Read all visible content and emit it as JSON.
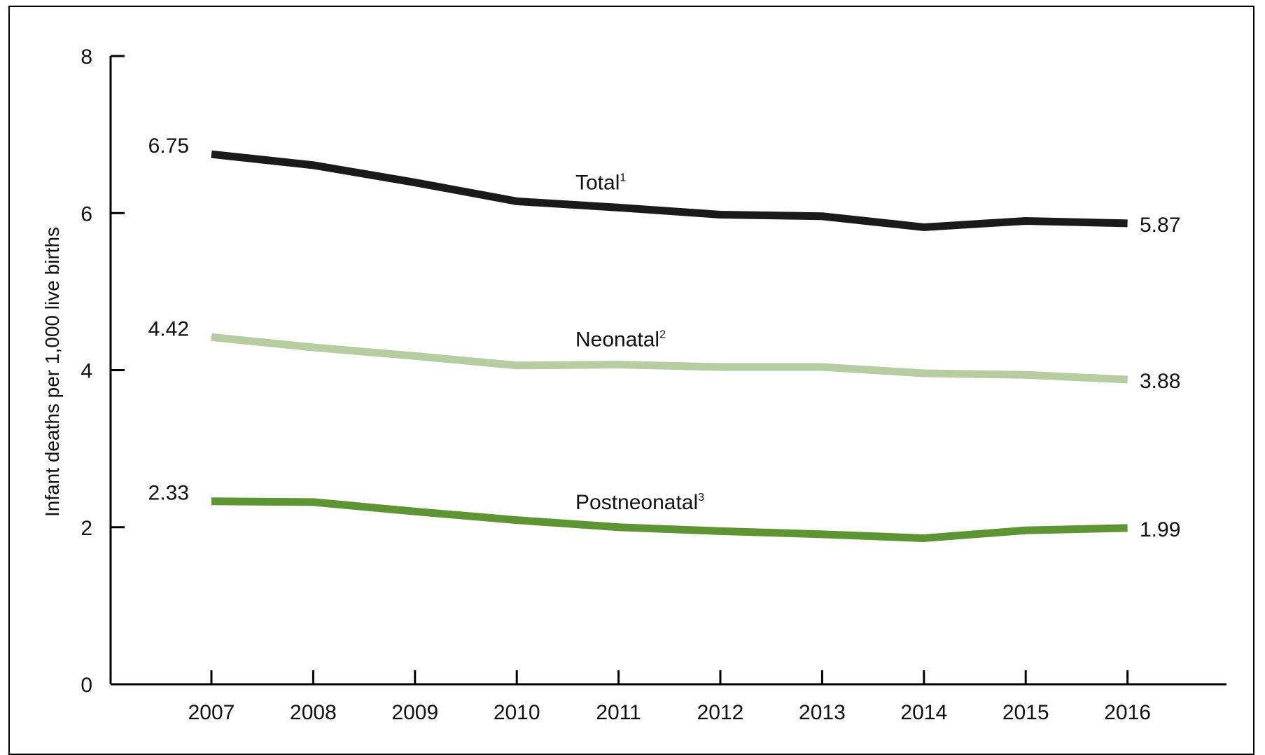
{
  "chart_data": {
    "type": "line",
    "ylabel": "Infant deaths per 1,000 live births",
    "xlabel": "",
    "ylim": [
      0,
      8
    ],
    "yticks": [
      0,
      2,
      4,
      6,
      8
    ],
    "categories": [
      "2007",
      "2008",
      "2009",
      "2010",
      "2011",
      "2012",
      "2013",
      "2014",
      "2015",
      "2016"
    ],
    "grid": false,
    "legend": "inline",
    "series": [
      {
        "key": "total",
        "name": "Total",
        "sup": "1",
        "color": "#1a1a1a",
        "values": [
          6.75,
          6.61,
          6.39,
          6.15,
          6.07,
          5.98,
          5.96,
          5.82,
          5.9,
          5.87
        ],
        "start_label": "6.75",
        "end_label": "5.87"
      },
      {
        "key": "neonatal",
        "name": "Neonatal",
        "sup": "2",
        "color": "#b5cda0",
        "values": [
          4.42,
          4.29,
          4.18,
          4.06,
          4.07,
          4.04,
          4.04,
          3.96,
          3.94,
          3.88
        ],
        "start_label": "4.42",
        "end_label": "3.88"
      },
      {
        "key": "postneonatal",
        "name": "Postneonatal",
        "sup": "3",
        "color": "#5e9433",
        "values": [
          2.33,
          2.32,
          2.2,
          2.09,
          2.0,
          1.95,
          1.91,
          1.86,
          1.96,
          1.99
        ],
        "start_label": "2.33",
        "end_label": "1.99"
      }
    ]
  }
}
